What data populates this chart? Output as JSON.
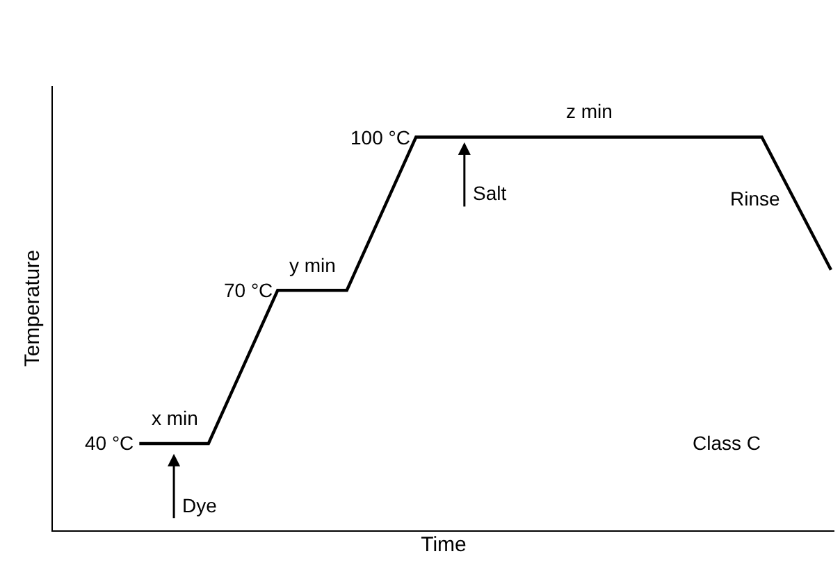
{
  "chart_data": {
    "type": "line",
    "xlabel": "Time",
    "ylabel": "Temperature",
    "categories": [
      null,
      null,
      null,
      null,
      null,
      null,
      null,
      null,
      null,
      null,
      null,
      null
    ],
    "series": [
      {
        "color": "#000000",
        "values": [
          null,
          40,
          40,
          70,
          70,
          100,
          100,
          100,
          100,
          100,
          100,
          74
        ],
        "value_labels": [
          null,
          "40 °C",
          null,
          "70 °C",
          null,
          "100 °C",
          null,
          null,
          null,
          null,
          null,
          null
        ]
      }
    ],
    "ylim": [
      23,
      110
    ],
    "tick_labels": false,
    "marker": "none",
    "line_style": "solid",
    "annotations": [
      "x min",
      "y min",
      "z min",
      "Dye",
      "Salt",
      "Rinse",
      "Class C"
    ]
  }
}
